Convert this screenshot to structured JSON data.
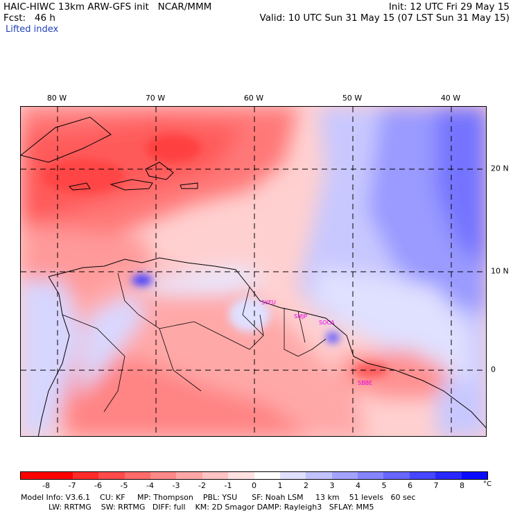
{
  "header": {
    "title": "HAIC-HIWC 13km ARW-GFS init   NCAR/MMM",
    "init": "Init: 12 UTC Fri 29 May 15",
    "fcst": "Fcst:   46 h",
    "valid": "Valid: 10 UTC Sun 31 May 15 (07 LST Sun 31 May 15)",
    "field": "Lifted index"
  },
  "lon_labels": [
    "80 W",
    "70 W",
    "60 W",
    "50 W",
    "40 W"
  ],
  "lat_labels": [
    "20 N",
    "10 N",
    "0"
  ],
  "stations": [
    "SYEU",
    "SMJP",
    "SOCA",
    "SBBE"
  ],
  "colorbar": {
    "colors": [
      "#ff0000",
      "#ff2b2b",
      "#ff4b4b",
      "#ff6a6a",
      "#ff8888",
      "#ffa7a7",
      "#ffc4c4",
      "#ffe1e1",
      "#ffffff",
      "#e0e0ff",
      "#c2c2ff",
      "#a3a3ff",
      "#8585ff",
      "#6666ff",
      "#4747ff",
      "#2929ff",
      "#0a0aff"
    ],
    "ticks": [
      "-8",
      "-7",
      "-6",
      "-5",
      "-4",
      "-3",
      "-2",
      "-1",
      "0",
      "1",
      "2",
      "3",
      "4",
      "5",
      "6",
      "7",
      "8"
    ],
    "unit": "°C"
  },
  "footer": {
    "line1": "Model Info: V3.6.1    CU: KF     MP: Thompson    PBL: YSU      SF: Noah LSM     13 km    51 levels   60 sec",
    "line2": "LW: RRTMG    SW: RRTMG   DIFF: full    KM: 2D Smagor DAMP: Rayleigh3   SFLAY: MM5"
  }
}
